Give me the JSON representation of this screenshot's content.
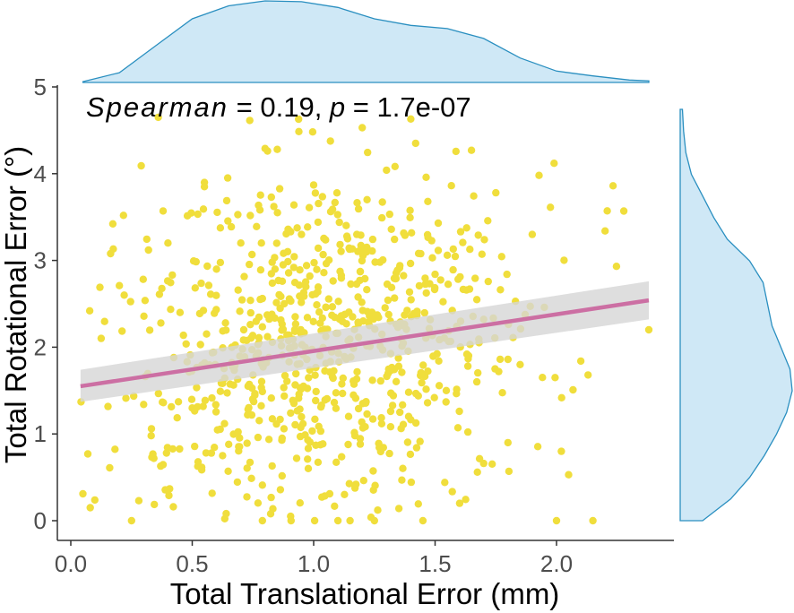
{
  "chart_data": {
    "type": "scatter",
    "title": "",
    "xlabel": "Total Translational Error (mm)",
    "ylabel": "Total Rotational Error (°)",
    "xlim": [
      -0.05,
      2.45
    ],
    "ylim": [
      -0.2,
      5.0
    ],
    "xticks": [
      0.0,
      0.5,
      1.0,
      1.5,
      2.0
    ],
    "xtick_labels": [
      "0.0",
      "0.5",
      "1.0",
      "1.5",
      "2.0"
    ],
    "yticks": [
      0,
      1,
      2,
      3,
      4,
      5
    ],
    "ytick_labels": [
      "0",
      "1",
      "2",
      "3",
      "4",
      "5"
    ],
    "grid": false,
    "annotation": {
      "method": "Spearman",
      "eq_rho": " = 0.19, ",
      "p_label": "p",
      "eq_p": " = 1.7e-07"
    },
    "regression": {
      "type": "linear",
      "x": [
        0.04,
        2.38
      ],
      "y": [
        1.55,
        2.54
      ],
      "ci_lower": [
        1.37,
        2.32
      ],
      "ci_upper": [
        1.74,
        2.76
      ]
    },
    "colors": {
      "points": "#f0de3c",
      "line": "#cc6fa3",
      "ci_band": "#d6d6d6",
      "marginal_fill": "#cfe8f6",
      "marginal_line": "#2a8fc0",
      "axis": "#333333"
    },
    "marginal_x_density": {
      "x": [
        0.05,
        0.2,
        0.35,
        0.5,
        0.65,
        0.8,
        0.95,
        1.1,
        1.25,
        1.4,
        1.55,
        1.7,
        1.85,
        2.0,
        2.15,
        2.3,
        2.38
      ],
      "density": [
        0.01,
        0.12,
        0.45,
        0.78,
        0.94,
        1.0,
        0.99,
        0.92,
        0.78,
        0.7,
        0.66,
        0.54,
        0.3,
        0.14,
        0.08,
        0.03,
        0.02
      ]
    },
    "marginal_y_density": {
      "y": [
        0.0,
        0.25,
        0.5,
        0.75,
        1.0,
        1.25,
        1.5,
        1.75,
        2.0,
        2.25,
        2.5,
        2.75,
        3.0,
        3.25,
        3.5,
        3.75,
        4.0,
        4.25,
        4.5,
        4.75
      ],
      "density": [
        0.2,
        0.45,
        0.62,
        0.75,
        0.86,
        0.95,
        1.0,
        0.98,
        0.9,
        0.82,
        0.78,
        0.74,
        0.62,
        0.42,
        0.3,
        0.2,
        0.1,
        0.05,
        0.03,
        0.02
      ]
    },
    "points_count": 800,
    "points_sample": [
      [
        0.05,
        0.31
      ],
      [
        0.07,
        0.77
      ],
      [
        0.08,
        0.15
      ],
      [
        0.12,
        2.69
      ],
      [
        0.16,
        0.61
      ],
      [
        0.2,
        2.71
      ],
      [
        0.22,
        2.6
      ],
      [
        0.25,
        0.0
      ],
      [
        0.28,
        0.23
      ],
      [
        0.3,
        1.34
      ],
      [
        0.32,
        3.12
      ],
      [
        0.36,
        4.65
      ],
      [
        0.38,
        3.57
      ],
      [
        0.4,
        3.2
      ],
      [
        0.45,
        2.4
      ],
      [
        0.5,
        1.3
      ],
      [
        0.55,
        3.85
      ],
      [
        0.6,
        2.9
      ],
      [
        0.65,
        0.88
      ],
      [
        0.7,
        3.2
      ],
      [
        0.75,
        1.68
      ],
      [
        0.8,
        4.29
      ],
      [
        0.85,
        4.28
      ],
      [
        0.9,
        1.99
      ],
      [
        0.95,
        3.3
      ],
      [
        1.0,
        3.87
      ],
      [
        1.05,
        2.46
      ],
      [
        1.1,
        0.0
      ],
      [
        1.15,
        0.0
      ],
      [
        1.2,
        4.53
      ],
      [
        1.22,
        3.7
      ],
      [
        1.25,
        0.0
      ],
      [
        1.3,
        4.04
      ],
      [
        1.35,
        1.78
      ],
      [
        1.4,
        4.63
      ],
      [
        1.42,
        4.35
      ],
      [
        1.45,
        0.0
      ],
      [
        1.5,
        2.84
      ],
      [
        1.55,
        3.06
      ],
      [
        1.6,
        1.26
      ],
      [
        1.65,
        4.27
      ],
      [
        1.7,
        0.66
      ],
      [
        1.75,
        3.78
      ],
      [
        1.8,
        0.9
      ],
      [
        1.85,
        1.8
      ],
      [
        1.9,
        3.3
      ],
      [
        1.95,
        2.46
      ],
      [
        1.99,
        4.12
      ],
      [
        2.0,
        0.0
      ],
      [
        2.02,
        0.8
      ],
      [
        2.05,
        0.53
      ],
      [
        2.1,
        1.84
      ],
      [
        2.13,
        1.68
      ],
      [
        2.15,
        0.0
      ],
      [
        2.2,
        3.34
      ],
      [
        2.38,
        2.2
      ]
    ]
  }
}
